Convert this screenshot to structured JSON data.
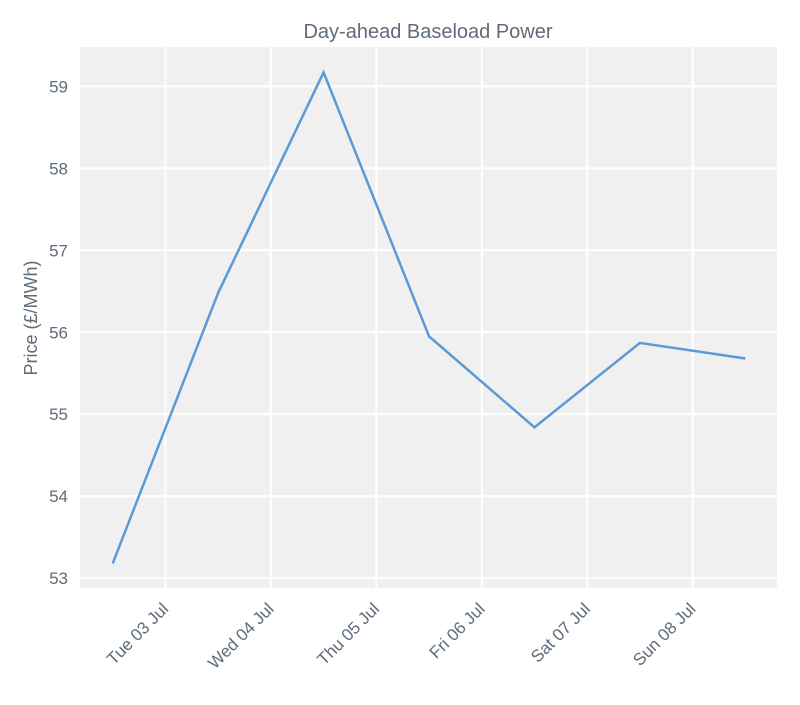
{
  "chart_data": {
    "type": "line",
    "title": "Day-ahead Baseload Power",
    "y_label": "Price (£/MWh)",
    "x": [
      2.5,
      3.5,
      4.5,
      5.5,
      6.5,
      7.5,
      8.5
    ],
    "series": [
      {
        "name": "Price",
        "color": "#5b9bd5",
        "values": [
          53.18,
          56.48,
          59.17,
          55.95,
          54.84,
          55.87,
          55.68
        ]
      }
    ],
    "xlim": [
      2.19,
      8.8
    ],
    "xticks": [
      {
        "value": 3,
        "label": "Tue 03 Jul"
      },
      {
        "value": 4,
        "label": "Wed 04 Jul"
      },
      {
        "value": 5,
        "label": "Thu 05 Jul"
      },
      {
        "value": 6,
        "label": "Fri 06 Jul"
      },
      {
        "value": 7,
        "label": "Sat 07 Jul"
      },
      {
        "value": 8,
        "label": "Sun 08 Jul"
      }
    ],
    "ylim": [
      52.88,
      59.48
    ],
    "yticks": [
      53,
      54,
      55,
      56,
      57,
      58,
      59
    ],
    "grid": true
  }
}
